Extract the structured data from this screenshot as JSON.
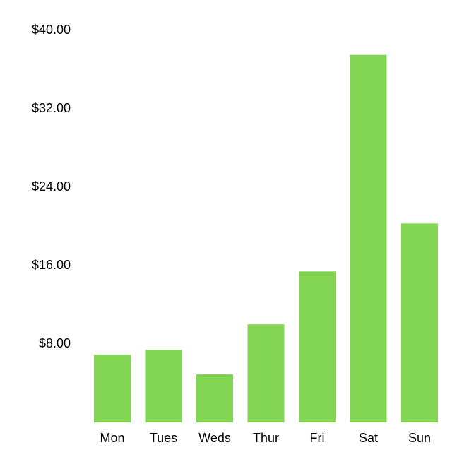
{
  "chart_data": {
    "type": "bar",
    "title": "",
    "xlabel": "",
    "ylabel": "",
    "categories": [
      "Mon",
      "Tues",
      "Weds",
      "Thur",
      "Fri",
      "Sat",
      "Sun"
    ],
    "values": [
      6.9,
      7.4,
      4.9,
      10.0,
      15.4,
      37.5,
      20.3
    ],
    "ylim": [
      0,
      40
    ],
    "yticks": [
      8,
      16,
      24,
      32,
      40
    ],
    "ytick_labels": [
      "$8.00",
      "$16.00",
      "$24.00",
      "$32.00",
      "$40.00"
    ],
    "grid": false,
    "legend": "none",
    "bar_color": "#82d552"
  }
}
